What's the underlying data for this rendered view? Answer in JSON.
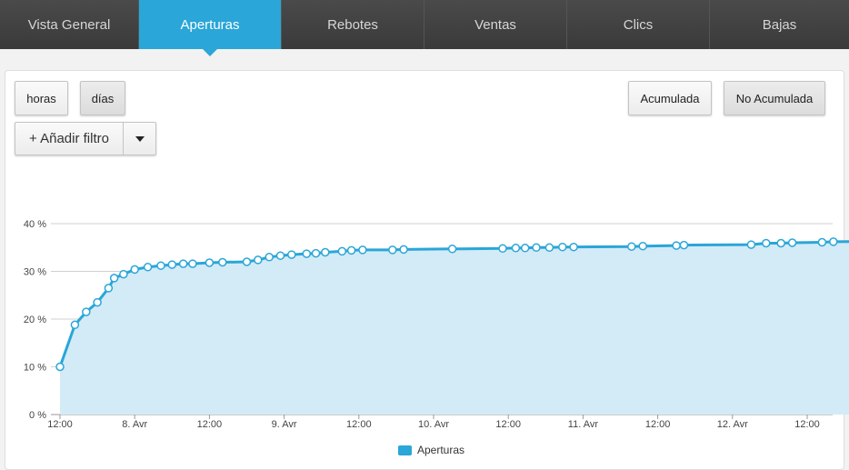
{
  "tabs": [
    {
      "label": "Vista General",
      "active": false
    },
    {
      "label": "Aperturas",
      "active": true
    },
    {
      "label": "Rebotes",
      "active": false
    },
    {
      "label": "Ventas",
      "active": false
    },
    {
      "label": "Clics",
      "active": false
    },
    {
      "label": "Bajas",
      "active": false
    }
  ],
  "toolbar": {
    "horas_label": "horas",
    "dias_label": "días",
    "acumulada_label": "Acumulada",
    "no_acumulada_label": "No Acumulada",
    "add_filter_label": "+ Añadir filtro"
  },
  "colors": {
    "accent": "#2aa6d8",
    "area_fill": "#d3ebf6",
    "line": "#2aa6d8"
  },
  "chart_data": {
    "type": "area",
    "y_unit": "%",
    "ylim": [
      0,
      40
    ],
    "y_ticks": [
      "0 %",
      "10 %",
      "20 %",
      "30 %",
      "40 %"
    ],
    "x_ticks": [
      "12:00",
      "8. Avr",
      "12:00",
      "9. Avr",
      "12:00",
      "10. Avr",
      "12:00",
      "11. Avr",
      "12:00",
      "12. Avr",
      "12:00"
    ],
    "grid": true,
    "legend_position": "bottom-center",
    "series": [
      {
        "name": "Aperturas",
        "values": [
          [
            0,
            10
          ],
          [
            0.4,
            18.8
          ],
          [
            0.7,
            21.5
          ],
          [
            1.0,
            23.5
          ],
          [
            1.3,
            26.5
          ],
          [
            1.45,
            28.6
          ],
          [
            1.7,
            29.4
          ],
          [
            2.0,
            30.4
          ],
          [
            2.35,
            30.9
          ],
          [
            2.7,
            31.2
          ],
          [
            3.0,
            31.4
          ],
          [
            3.3,
            31.6
          ],
          [
            3.55,
            31.6
          ],
          [
            4.0,
            31.8
          ],
          [
            4.35,
            31.9
          ],
          [
            5.0,
            32.0
          ],
          [
            5.3,
            32.4
          ],
          [
            5.6,
            33.0
          ],
          [
            5.9,
            33.3
          ],
          [
            6.2,
            33.5
          ],
          [
            6.6,
            33.7
          ],
          [
            6.85,
            33.8
          ],
          [
            7.1,
            34.0
          ],
          [
            7.55,
            34.2
          ],
          [
            7.8,
            34.4
          ],
          [
            8.1,
            34.5
          ],
          [
            8.9,
            34.5
          ],
          [
            9.2,
            34.6
          ],
          [
            10.5,
            34.7
          ],
          [
            11.85,
            34.8
          ],
          [
            12.2,
            34.9
          ],
          [
            12.45,
            34.9
          ],
          [
            12.75,
            35.0
          ],
          [
            13.1,
            35.0
          ],
          [
            13.45,
            35.1
          ],
          [
            13.75,
            35.1
          ],
          [
            15.3,
            35.2
          ],
          [
            15.6,
            35.3
          ],
          [
            16.5,
            35.4
          ],
          [
            16.7,
            35.5
          ],
          [
            18.5,
            35.6
          ],
          [
            18.9,
            35.9
          ],
          [
            19.3,
            35.9
          ],
          [
            19.6,
            36.0
          ],
          [
            20.4,
            36.1
          ],
          [
            20.7,
            36.2
          ],
          [
            22.4,
            36.3
          ],
          [
            22.6,
            36.4
          ],
          [
            22.8,
            36.5
          ],
          [
            23.0,
            36.5
          ]
        ]
      }
    ]
  }
}
